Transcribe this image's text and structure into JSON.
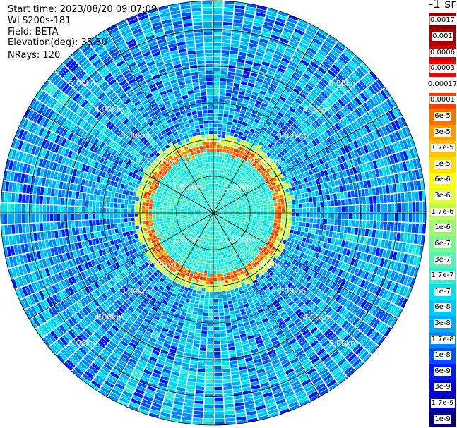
{
  "info": {
    "start_time": "Start time: 2023/08/20 09:07:09",
    "instrument": "WLS200s-181",
    "field": "Field: BETA",
    "elevation": "Elevation(deg): 35.30",
    "nrays": "NRays: 120"
  },
  "chart_data": {
    "type": "polar-ppi",
    "field": "BETA",
    "nrays": 120,
    "elevation_deg": 35.3,
    "range_km": [
      0,
      5.8
    ],
    "range_rings_km": [
      1,
      2,
      3,
      4,
      5
    ],
    "ring_labels": [
      "1.00km",
      "2.00km",
      "3.00km",
      "4.00km",
      "5.00km"
    ],
    "aerosol_layer_peak_range_km": 1.75,
    "colorbar": {
      "unit": "-1 sr",
      "labels": [
        "1e-9",
        "1.7e-9",
        "3e-9",
        "6e-9",
        "1e-8",
        "1.7e-8",
        "3e-8",
        "6e-8",
        "1e-7",
        "1.7e-7",
        "3e-7",
        "6e-7",
        "1e-6",
        "1.7e-6",
        "3e-6",
        "6e-6",
        "1e-5",
        "1.7e-5",
        "3e-5",
        "6e-5",
        "0.0001",
        "0.00017",
        "0.0003",
        "0.0006",
        "0.001",
        "0.0017"
      ],
      "colors": [
        "#00007a",
        "#0000b4",
        "#0000e0",
        "#0018ff",
        "#0050ff",
        "#0088ff",
        "#00aaff",
        "#00c8ff",
        "#00e4f0",
        "#30f0d0",
        "#55f5b0",
        "#78f890",
        "#9cfa70",
        "#c0fc50",
        "#e4fd30",
        "#ffff00",
        "#ffe000",
        "#ffc000",
        "#ff9a00",
        "#ff7000",
        "#ff3c00",
        "#ffffff",
        "#ff0000",
        "#cc0000",
        "#aa0000",
        "#8a0000"
      ]
    }
  }
}
